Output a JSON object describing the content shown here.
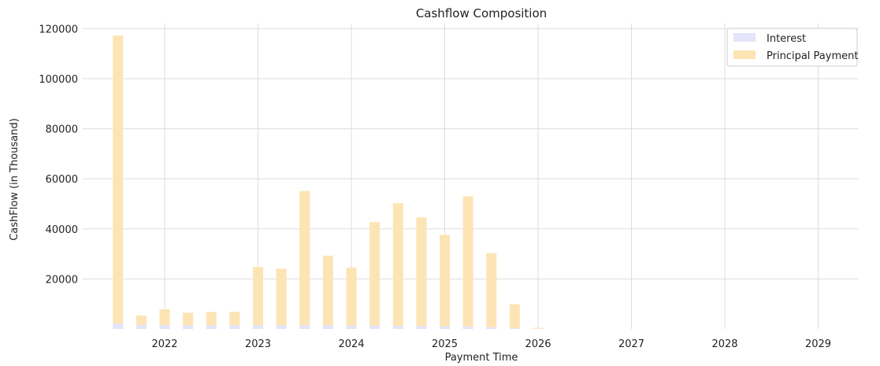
{
  "chart_data": {
    "type": "bar",
    "title": "Cashflow Composition",
    "xlabel": "Payment Time",
    "ylabel": "CashFlow (in Thousand)",
    "x_ticks": [
      "2022",
      "2023",
      "2024",
      "2025",
      "2026",
      "2027",
      "2028",
      "2029"
    ],
    "y_ticks": [
      20000,
      40000,
      60000,
      80000,
      100000,
      120000
    ],
    "ylim": [
      0,
      122000
    ],
    "grid": true,
    "legend_position": "top-right",
    "stacked": true,
    "x": [
      "2021-07",
      "2021-10",
      "2022-01",
      "2022-04",
      "2022-07",
      "2022-10",
      "2023-01",
      "2023-04",
      "2023-07",
      "2023-10",
      "2024-01",
      "2024-04",
      "2024-07",
      "2024-10",
      "2025-01",
      "2025-04",
      "2025-07",
      "2025-10",
      "2026-01"
    ],
    "series": [
      {
        "name": "Interest",
        "color": "#e4e4fa",
        "values": [
          2200,
          1600,
          1600,
          1500,
          1500,
          1500,
          1500,
          1500,
          1500,
          1500,
          1400,
          1400,
          1300,
          1200,
          1100,
          1000,
          700,
          400,
          100
        ]
      },
      {
        "name": "Principal Payment",
        "color": "#fde4b4",
        "values": [
          115000,
          3800,
          6300,
          5000,
          5300,
          5400,
          23300,
          22600,
          53600,
          27800,
          23100,
          41300,
          49000,
          43400,
          36500,
          52000,
          29600,
          9500,
          400
        ]
      }
    ]
  }
}
